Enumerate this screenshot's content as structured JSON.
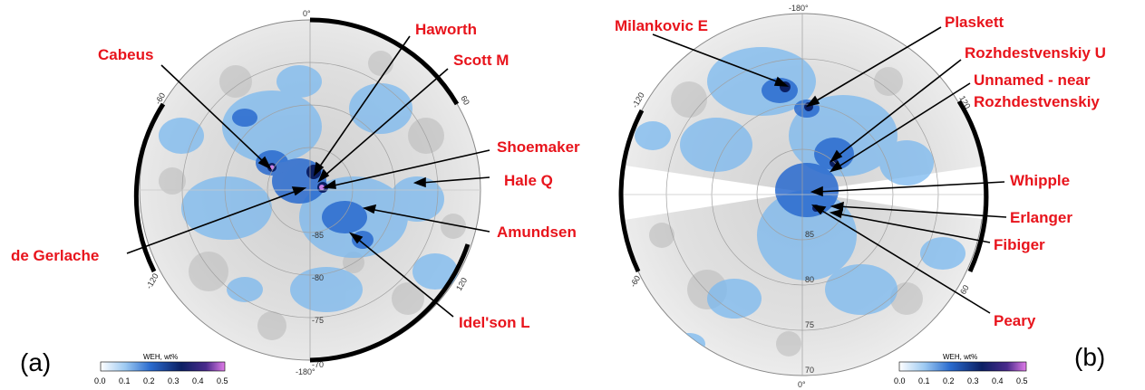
{
  "colors": {
    "label": "#e8141c",
    "water_low": "#7ab8ef",
    "water_mid": "#2a6bcf",
    "water_high": "#0b1f63",
    "water_peak": "#c87ee6",
    "terrain": "#d9d9d9",
    "frame": "#000000"
  },
  "panel_a": {
    "letter": "(a)",
    "lon_ticks": {
      "top": "0°",
      "bottom": "-180°",
      "upper_left": "-60",
      "upper_right": "60",
      "lower_left": "-120",
      "lower_right": "120"
    },
    "lat_ticks": [
      "-85",
      "-80",
      "-75",
      "-70"
    ],
    "colorbar": {
      "title": "WEH, wt%",
      "ticks": [
        "0.0",
        "0.1",
        "0.2",
        "0.3",
        "0.4",
        "0.5"
      ]
    },
    "labels": [
      {
        "id": "cabeus",
        "text": "Cabeus"
      },
      {
        "id": "haworth",
        "text": "Haworth"
      },
      {
        "id": "scott-m",
        "text": "Scott M"
      },
      {
        "id": "shoemaker",
        "text": "Shoemaker"
      },
      {
        "id": "hale-q",
        "text": "Hale Q"
      },
      {
        "id": "amundsen",
        "text": "Amundsen"
      },
      {
        "id": "de-gerlache",
        "text": "de Gerlache"
      },
      {
        "id": "idelson-l",
        "text": "Idel'son L"
      }
    ]
  },
  "panel_b": {
    "letter": "(b)",
    "lon_ticks": {
      "top": "-180°",
      "bottom": "0°",
      "upper_left": "-120",
      "upper_right": "120",
      "lower_left": "-60",
      "lower_right": "60"
    },
    "lat_ticks": [
      "85",
      "80",
      "75",
      "70"
    ],
    "colorbar": {
      "title": "WEH, wt%",
      "ticks": [
        "0.0",
        "0.1",
        "0.2",
        "0.3",
        "0.4",
        "0.5"
      ]
    },
    "labels": [
      {
        "id": "milankovic-e",
        "text": "Milankovic E"
      },
      {
        "id": "plaskett",
        "text": "Plaskett"
      },
      {
        "id": "rozhdestvenskiy-u",
        "text": "Rozhdestvenskiy  U"
      },
      {
        "id": "unnamed-near-1",
        "text": "Unnamed - near"
      },
      {
        "id": "unnamed-near-2",
        "text": "Rozhdestvenskiy"
      },
      {
        "id": "whipple",
        "text": "Whipple"
      },
      {
        "id": "erlanger",
        "text": "Erlanger"
      },
      {
        "id": "fibiger",
        "text": "Fibiger"
      },
      {
        "id": "peary",
        "text": "Peary"
      }
    ]
  }
}
